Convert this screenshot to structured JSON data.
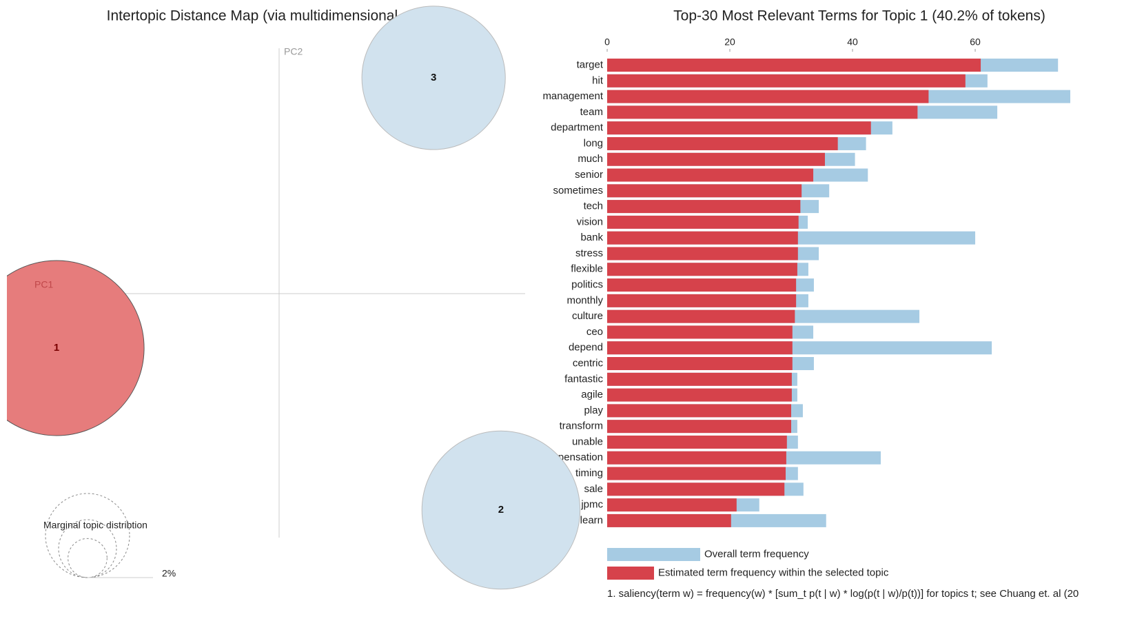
{
  "chart_data": [
    {
      "type": "bubble",
      "title": "Intertopic Distance Map (via multidimensional scaling)",
      "x_label": "PC1",
      "y_label": "PC2",
      "labels": [
        "1",
        "2",
        "3"
      ],
      "x": [
        -0.327,
        0.326,
        0.227
      ],
      "y": [
        -0.08,
        -0.318,
        0.317
      ],
      "sizes": [
        40.2,
        32.8,
        27.0
      ],
      "colors": [
        "#e67c7c",
        "#d1e2ee",
        "#d1e2ee"
      ],
      "xlim": [
        -0.4,
        0.4
      ],
      "ylim": [
        -0.43,
        0.43
      ],
      "size_legend_title": "Marginal topic distribtion",
      "size_legend": [
        {
          "value": 2,
          "label": "2%"
        }
      ]
    },
    {
      "type": "hbar",
      "title": "Top-30 Most Relevant Terms for Topic 1 (40.2% of tokens)",
      "categories": [
        "target",
        "hit",
        "management",
        "team",
        "department",
        "long",
        "much",
        "senior",
        "sometimes",
        "tech",
        "vision",
        "bank",
        "stress",
        "flexible",
        "politics",
        "monthly",
        "culture",
        "ceo",
        "depend",
        "centric",
        "fantastic",
        "agile",
        "play",
        "transform",
        "unable",
        "compensation",
        "timing",
        "sale",
        "jpmc",
        "learn"
      ],
      "series": [
        {
          "name": "Overall term frequency",
          "color": "#a6cbe3",
          "values": [
            73.5,
            62.0,
            75.5,
            63.6,
            46.5,
            42.2,
            40.4,
            42.5,
            36.2,
            34.5,
            32.7,
            60.0,
            34.5,
            32.8,
            33.7,
            32.8,
            50.9,
            33.6,
            62.7,
            33.7,
            31.0,
            31.0,
            31.9,
            31.0,
            31.1,
            44.6,
            31.1,
            32.0,
            24.8,
            35.7
          ]
        },
        {
          "name": "Estimated term frequency within the selected topic",
          "color": "#d6424b",
          "values": [
            60.9,
            58.4,
            52.4,
            50.6,
            43.0,
            37.6,
            35.5,
            33.6,
            31.7,
            31.5,
            31.2,
            31.1,
            31.1,
            31.0,
            30.8,
            30.8,
            30.6,
            30.2,
            30.2,
            30.2,
            30.1,
            30.1,
            30.0,
            30.0,
            29.3,
            29.2,
            29.1,
            28.9,
            21.1,
            20.2
          ]
        }
      ],
      "xlim": [
        0,
        75.5
      ],
      "xticks": [
        0,
        20,
        40,
        60
      ],
      "footnote": "1. saliency(term w) = frequency(w) * [sum_t p(t | w) * log(p(t | w)/p(t))] for topics t; see Chuang et. al (20"
    }
  ]
}
